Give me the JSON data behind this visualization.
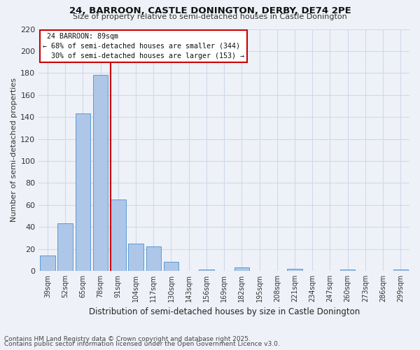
{
  "title": "24, BARROON, CASTLE DONINGTON, DERBY, DE74 2PE",
  "subtitle": "Size of property relative to semi-detached houses in Castle Donington",
  "xlabel": "Distribution of semi-detached houses by size in Castle Donington",
  "ylabel": "Number of semi-detached properties",
  "categories": [
    "39sqm",
    "52sqm",
    "65sqm",
    "78sqm",
    "91sqm",
    "104sqm",
    "117sqm",
    "130sqm",
    "143sqm",
    "156sqm",
    "169sqm",
    "182sqm",
    "195sqm",
    "208sqm",
    "221sqm",
    "234sqm",
    "247sqm",
    "260sqm",
    "273sqm",
    "286sqm",
    "299sqm"
  ],
  "values": [
    14,
    43,
    143,
    178,
    65,
    25,
    22,
    8,
    0,
    1,
    0,
    3,
    0,
    0,
    2,
    0,
    0,
    1,
    0,
    0,
    1
  ],
  "bar_color": "#aec6e8",
  "bar_edge_color": "#5b9bd5",
  "grid_color": "#d0d8e8",
  "background_color": "#eef2f8",
  "vline_color": "#cc0000",
  "property_size": "89sqm",
  "property_name": "24 BARROON",
  "pct_smaller": 68,
  "n_smaller": 344,
  "pct_larger": 30,
  "n_larger": 153,
  "ylim": [
    0,
    220
  ],
  "yticks": [
    0,
    20,
    40,
    60,
    80,
    100,
    120,
    140,
    160,
    180,
    200,
    220
  ],
  "footnote1": "Contains HM Land Registry data © Crown copyright and database right 2025.",
  "footnote2": "Contains public sector information licensed under the Open Government Licence v3.0.",
  "title_fontsize": 9.5,
  "subtitle_fontsize": 8,
  "footnote_fontsize": 6.5
}
